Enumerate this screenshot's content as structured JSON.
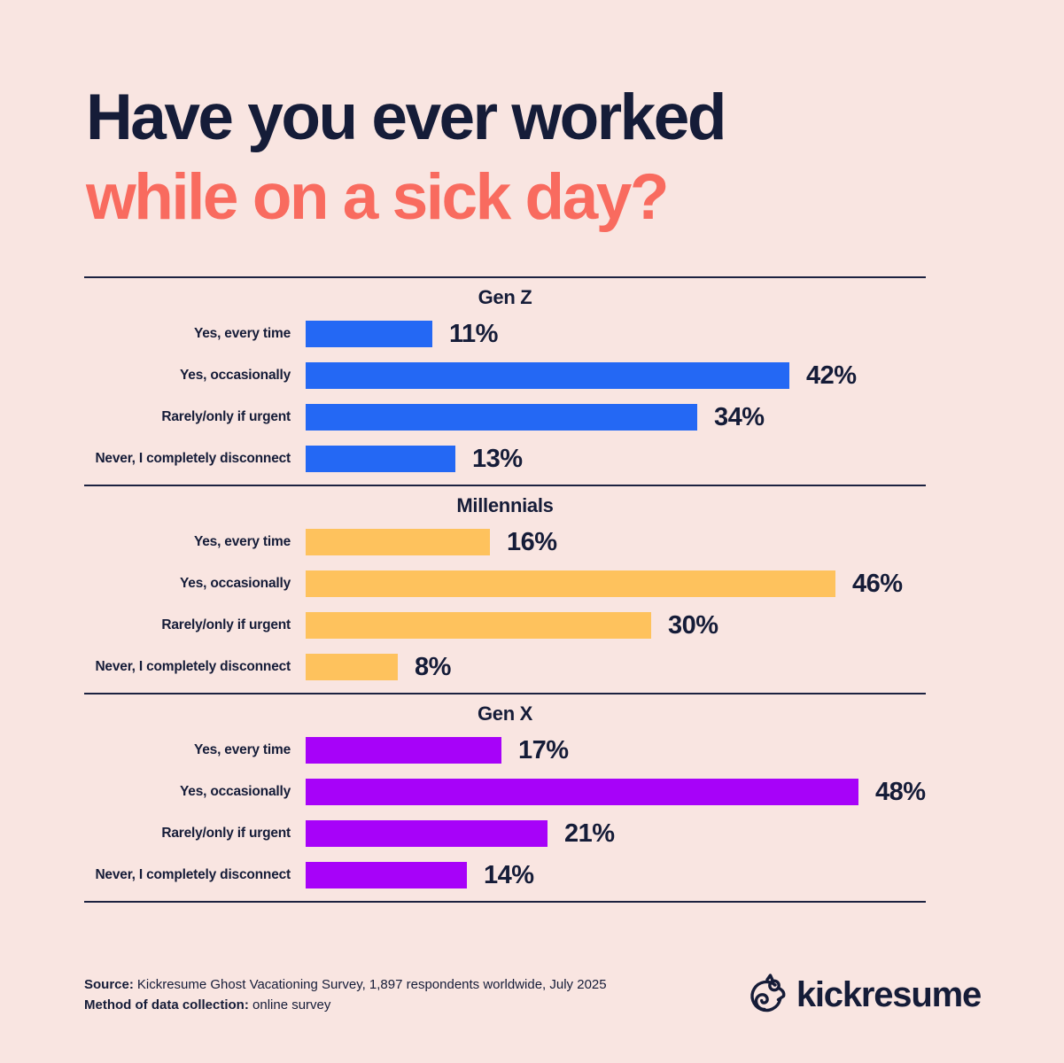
{
  "title": {
    "line1": "Have you ever worked",
    "line2": "while on a sick day?"
  },
  "colors": {
    "background": "#f9e5e1",
    "heading": "#151c38",
    "title_accent": "#f96b5f",
    "divider": "#1c2240",
    "gen_z": "#2468f4",
    "millennials": "#fec25d",
    "gen_x": "#a702f9"
  },
  "chart_data": {
    "type": "bar",
    "orientation": "horizontal",
    "title": "Have you ever worked while on a sick day?",
    "unit": "%",
    "xlim": [
      0,
      50
    ],
    "value_labels": true,
    "categories": [
      "Yes, every time",
      "Yes, occasionally",
      "Rarely/only if urgent",
      "Never, I completely disconnect"
    ],
    "series": [
      {
        "name": "Gen Z",
        "color": "#2468f4",
        "values": [
          11,
          42,
          34,
          13
        ]
      },
      {
        "name": "Millennials",
        "color": "#fec25d",
        "values": [
          16,
          46,
          30,
          8
        ]
      },
      {
        "name": "Gen X",
        "color": "#a702f9",
        "values": [
          17,
          48,
          21,
          14
        ]
      }
    ]
  },
  "sections": [
    {
      "title": "Gen Z",
      "color": "#2468f4",
      "rows": [
        {
          "label": "Yes, every time",
          "value": 11,
          "pct": "11%"
        },
        {
          "label": "Yes, occasionally",
          "value": 42,
          "pct": "42%"
        },
        {
          "label": "Rarely/only if urgent",
          "value": 34,
          "pct": "34%"
        },
        {
          "label": "Never, I completely disconnect",
          "value": 13,
          "pct": "13%"
        }
      ]
    },
    {
      "title": "Millennials",
      "color": "#fec25d",
      "rows": [
        {
          "label": "Yes, every time",
          "value": 16,
          "pct": "16%"
        },
        {
          "label": "Yes, occasionally",
          "value": 46,
          "pct": "46%"
        },
        {
          "label": "Rarely/only if urgent",
          "value": 30,
          "pct": "30%"
        },
        {
          "label": "Never, I completely disconnect",
          "value": 8,
          "pct": "8%"
        }
      ]
    },
    {
      "title": "Gen X",
      "color": "#a702f9",
      "rows": [
        {
          "label": "Yes, every time",
          "value": 17,
          "pct": "17%"
        },
        {
          "label": "Yes, occasionally",
          "value": 48,
          "pct": "48%"
        },
        {
          "label": "Rarely/only if urgent",
          "value": 21,
          "pct": "21%"
        },
        {
          "label": "Never, I completely disconnect",
          "value": 14,
          "pct": "14%"
        }
      ]
    }
  ],
  "footer": {
    "source_label": "Source:",
    "source_text": "Kickresume Ghost Vacationing Survey, 1,897 respondents worldwide, July 2025",
    "method_label": "Method of data collection:",
    "method_text": "online survey",
    "brand": "kickresume"
  }
}
